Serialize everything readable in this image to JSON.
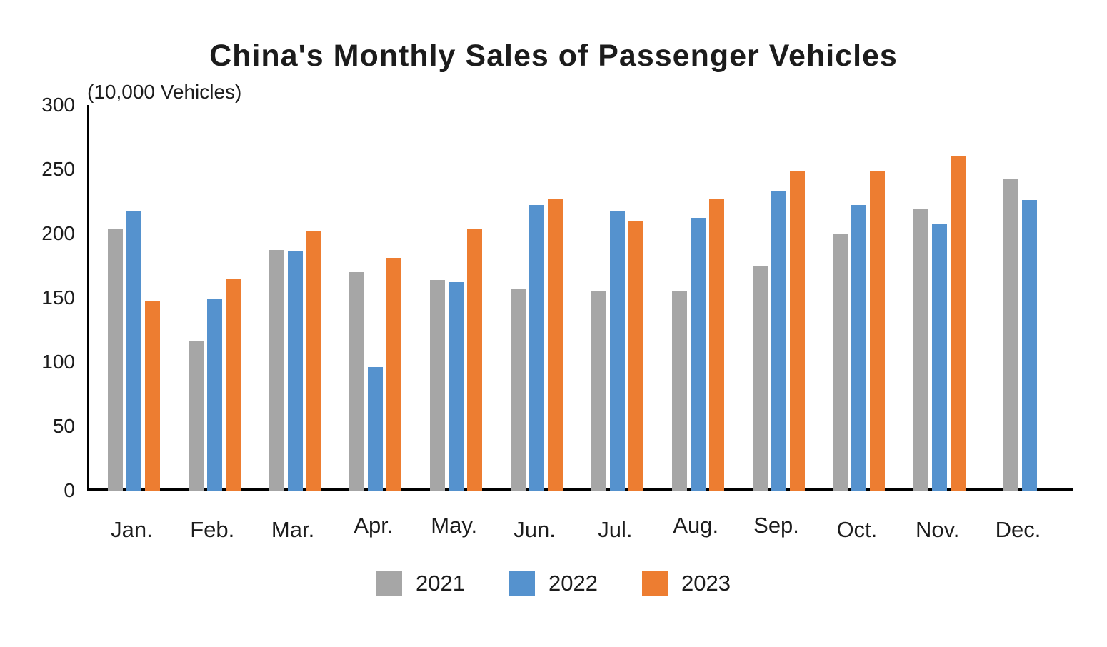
{
  "chart_data": {
    "type": "bar",
    "title": "China's Monthly Sales of Passenger Vehicles",
    "unit_label": "(10,000 Vehicles)",
    "categories": [
      "Jan.",
      "Feb.",
      "Mar.",
      "Apr.",
      "May.",
      "Jun.",
      "Jul.",
      "Aug.",
      "Sep.",
      "Oct.",
      "Nov.",
      "Dec."
    ],
    "series": [
      {
        "name": "2021",
        "color": "#A6A6A6",
        "values": [
          204,
          116,
          187,
          170,
          164,
          157,
          155,
          155,
          175,
          200,
          219,
          242
        ]
      },
      {
        "name": "2022",
        "color": "#5592CE",
        "values": [
          218,
          149,
          186,
          96,
          162,
          222,
          217,
          212,
          233,
          222,
          207,
          226
        ]
      },
      {
        "name": "2023",
        "color": "#ED7D31",
        "values": [
          147,
          165,
          202,
          181,
          204,
          227,
          210,
          227,
          249,
          249,
          260,
          null
        ]
      }
    ],
    "ylim": [
      0,
      300
    ],
    "y_ticks": [
      0,
      50,
      100,
      150,
      200,
      250,
      300
    ],
    "grid": false,
    "legend_position": "bottom",
    "axis_color": "#000000",
    "text_color": "#1c1c1c"
  }
}
